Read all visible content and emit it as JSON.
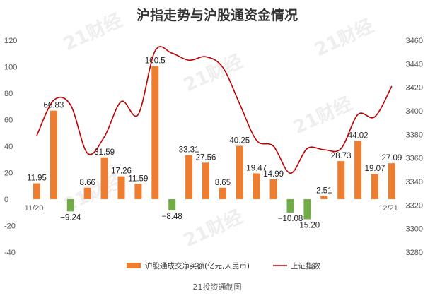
{
  "chart_data": {
    "type": "bar",
    "title": "沪指走势与沪股通资金情况",
    "source": "21投资通制图",
    "watermark": "21财经",
    "x_start_label": "11/20",
    "x_end_label": "12/21",
    "colors": {
      "positive": "#ED7D31",
      "negative": "#70AD47",
      "line": "#C00000"
    },
    "left_axis": {
      "min": -40,
      "max": 120,
      "step": 20,
      "ticks": [
        "120",
        "100",
        "80",
        "60",
        "40",
        "20",
        "0",
        "-20",
        "-40"
      ]
    },
    "right_axis": {
      "min": 3280,
      "max": 3460,
      "step": 20,
      "ticks": [
        "3460",
        "3440",
        "3420",
        "3400",
        "3380",
        "3360",
        "3340",
        "3320",
        "3300",
        "3280"
      ]
    },
    "series": [
      {
        "name": "沪股通成交净买额(亿元,人民币)",
        "type": "bar",
        "axis": "left",
        "values": [
          11.95,
          66.83,
          -9.24,
          8.66,
          31.59,
          17.26,
          11.59,
          100.5,
          -8.48,
          33.31,
          27.56,
          8.65,
          40.25,
          19.47,
          14.99,
          -10.08,
          -15.2,
          2.51,
          28.73,
          44.02,
          19.07,
          27.09
        ],
        "labels": [
          "11.95",
          "66.83",
          "−9.24",
          "8.66",
          "31.59",
          "17.26",
          "11.59",
          "100.5",
          "−8.48",
          "33.31",
          "27.56",
          "8.65",
          "40.25",
          "19.47",
          "14.99",
          "−10.08",
          "−15.20",
          "2.51",
          "28.73",
          "44.02",
          "19.07",
          "27.09"
        ]
      },
      {
        "name": "上证指数",
        "type": "line",
        "axis": "right",
        "values": [
          3379,
          3409,
          3405,
          3364,
          3378,
          3408,
          3397,
          3451,
          3449,
          3443,
          3446,
          3437,
          3406,
          3375,
          3370,
          3347,
          3368,
          3367,
          3368,
          3397,
          3395,
          3421
        ]
      }
    ]
  }
}
